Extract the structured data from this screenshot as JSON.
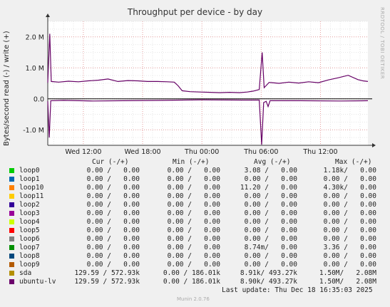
{
  "chart_data": {
    "type": "line",
    "title": "Throughput per device - by day",
    "ylabel": "Bytes/second read (-) / write (+)",
    "ylim": [
      -1500000,
      2500000
    ],
    "yticks": [
      {
        "value": 2000000,
        "label": "2.0 M"
      },
      {
        "value": 1000000,
        "label": "1.0 M"
      },
      {
        "value": 0,
        "label": "0.0"
      },
      {
        "value": -1000000,
        "label": "-1.0 M"
      }
    ],
    "xticks": [
      "Wed 12:00",
      "Wed 18:00",
      "Thu 00:00",
      "Thu 06:00",
      "Thu 12:00"
    ],
    "x_tick_hours": [
      12,
      18,
      24,
      30,
      36
    ],
    "x_range_hours": [
      8.4,
      40.8
    ],
    "series": [
      {
        "name": "ubuntu-lv",
        "color": "#660066",
        "write_points": [
          [
            8.4,
            520000
          ],
          [
            8.6,
            2100000
          ],
          [
            8.75,
            560000
          ],
          [
            9.5,
            540000
          ],
          [
            10.5,
            570000
          ],
          [
            11.5,
            550000
          ],
          [
            12.5,
            580000
          ],
          [
            13.5,
            600000
          ],
          [
            14.5,
            640000
          ],
          [
            15.5,
            560000
          ],
          [
            16.5,
            590000
          ],
          [
            17.5,
            580000
          ],
          [
            18.5,
            560000
          ],
          [
            19.5,
            560000
          ],
          [
            20.5,
            550000
          ],
          [
            21.2,
            540000
          ],
          [
            21.6,
            420000
          ],
          [
            22.0,
            260000
          ],
          [
            22.8,
            230000
          ],
          [
            23.8,
            220000
          ],
          [
            24.8,
            210000
          ],
          [
            25.8,
            200000
          ],
          [
            26.8,
            210000
          ],
          [
            27.8,
            200000
          ],
          [
            28.6,
            220000
          ],
          [
            29.2,
            250000
          ],
          [
            29.8,
            300000
          ],
          [
            30.1,
            1500000
          ],
          [
            30.3,
            360000
          ],
          [
            30.8,
            530000
          ],
          [
            31.8,
            500000
          ],
          [
            32.8,
            540000
          ],
          [
            33.8,
            510000
          ],
          [
            34.8,
            550000
          ],
          [
            35.8,
            520000
          ],
          [
            36.8,
            610000
          ],
          [
            37.8,
            680000
          ],
          [
            38.8,
            760000
          ],
          [
            39.8,
            620000
          ],
          [
            40.3,
            580000
          ],
          [
            40.8,
            560000
          ]
        ],
        "read_points": [
          [
            8.4,
            -80000
          ],
          [
            8.55,
            -1250000
          ],
          [
            8.7,
            -60000
          ],
          [
            10.0,
            -50000
          ],
          [
            13.0,
            -70000
          ],
          [
            16.0,
            -60000
          ],
          [
            20.0,
            -50000
          ],
          [
            24.0,
            -30000
          ],
          [
            28.0,
            -40000
          ],
          [
            29.8,
            -40000
          ],
          [
            30.05,
            -1480000
          ],
          [
            30.25,
            -120000
          ],
          [
            30.5,
            -80000
          ],
          [
            30.7,
            -250000
          ],
          [
            30.9,
            -60000
          ],
          [
            34.0,
            -60000
          ],
          [
            38.0,
            -70000
          ],
          [
            40.8,
            -60000
          ]
        ]
      }
    ],
    "grid": true
  },
  "rrdtool_label": "RRDTOOL / TOBI OETIKER",
  "table": {
    "headers": {
      "cur": "Cur (-/+)",
      "min": "Min (-/+)",
      "avg": "Avg (-/+)",
      "max": "Max (-/+)"
    },
    "rows": [
      {
        "name": "loop0",
        "color": "#00cc00",
        "cur": "0.00 /   0.00",
        "min": "0.00 /   0.00",
        "avg": "3.08 /   0.00",
        "max": "1.18k/   0.00"
      },
      {
        "name": "loop1",
        "color": "#0066b3",
        "cur": "0.00 /   0.00",
        "min": "0.00 /   0.00",
        "avg": "0.00 /   0.00",
        "max": "0.00 /   0.00"
      },
      {
        "name": "loop10",
        "color": "#ff8000",
        "cur": "0.00 /   0.00",
        "min": "0.00 /   0.00",
        "avg": "11.20 /   0.00",
        "max": "4.30k/   0.00"
      },
      {
        "name": "loop11",
        "color": "#ffcc00",
        "cur": "0.00 /   0.00",
        "min": "0.00 /   0.00",
        "avg": "0.00 /   0.00",
        "max": "0.00 /   0.00"
      },
      {
        "name": "loop2",
        "color": "#330099",
        "cur": "0.00 /   0.00",
        "min": "0.00 /   0.00",
        "avg": "0.00 /   0.00",
        "max": "0.00 /   0.00"
      },
      {
        "name": "loop3",
        "color": "#990099",
        "cur": "0.00 /   0.00",
        "min": "0.00 /   0.00",
        "avg": "0.00 /   0.00",
        "max": "0.00 /   0.00"
      },
      {
        "name": "loop4",
        "color": "#ccff00",
        "cur": "0.00 /   0.00",
        "min": "0.00 /   0.00",
        "avg": "0.00 /   0.00",
        "max": "0.00 /   0.00"
      },
      {
        "name": "loop5",
        "color": "#ff0000",
        "cur": "0.00 /   0.00",
        "min": "0.00 /   0.00",
        "avg": "0.00 /   0.00",
        "max": "0.00 /   0.00"
      },
      {
        "name": "loop6",
        "color": "#808080",
        "cur": "0.00 /   0.00",
        "min": "0.00 /   0.00",
        "avg": "0.00 /   0.00",
        "max": "0.00 /   0.00"
      },
      {
        "name": "loop7",
        "color": "#008f00",
        "cur": "0.00 /   0.00",
        "min": "0.00 /   0.00",
        "avg": "8.74m/   0.00",
        "max": "3.36 /   0.00"
      },
      {
        "name": "loop8",
        "color": "#00487d",
        "cur": "0.00 /   0.00",
        "min": "0.00 /   0.00",
        "avg": "0.00 /   0.00",
        "max": "0.00 /   0.00"
      },
      {
        "name": "loop9",
        "color": "#b35a00",
        "cur": "0.00 /   0.00",
        "min": "0.00 /   0.00",
        "avg": "0.00 /   0.00",
        "max": "0.00 /   0.00"
      },
      {
        "name": "sda",
        "color": "#b38f00",
        "cur": "129.59 / 572.93k",
        "min": "0.00 / 186.01k",
        "avg": "8.91k/ 493.27k",
        "max": "1.50M/   2.08M"
      },
      {
        "name": "ubuntu-lv",
        "color": "#6b006b",
        "cur": "129.59 / 572.93k",
        "min": "0.00 / 186.01k",
        "avg": "8.90k/ 493.27k",
        "max": "1.50M/   2.08M"
      }
    ]
  },
  "last_update": "Last update: Thu Dec 18 16:35:03 2025",
  "footer": "Munin 2.0.76"
}
